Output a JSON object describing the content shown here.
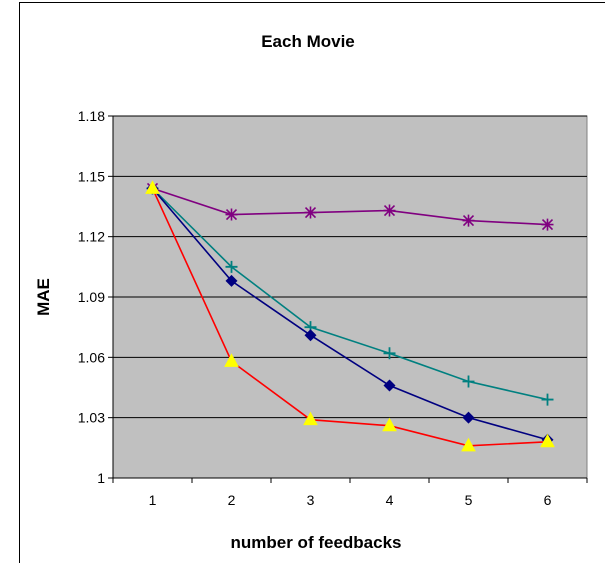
{
  "chart_data": {
    "type": "line",
    "title": "Each Movie",
    "xlabel": "number of feedbacks",
    "ylabel": "MAE",
    "x": [
      1,
      2,
      3,
      4,
      5,
      6
    ],
    "ylim": [
      1,
      1.18
    ],
    "yticks": [
      1,
      1.03,
      1.06,
      1.09,
      1.12,
      1.15,
      1.18
    ],
    "ytick_labels": [
      "1",
      "1.03",
      "1.06",
      "1.09",
      "1.12",
      "1.15",
      "1.18"
    ],
    "xtick_labels": [
      "1",
      "2",
      "3",
      "4",
      "5",
      "6"
    ],
    "grid": "horizontal",
    "plot_background": "#c0c0c0",
    "series": [
      {
        "values": [
          1.144,
          1.131,
          1.132,
          1.133,
          1.128,
          1.126
        ],
        "color": "#800080",
        "marker": "asterisk"
      },
      {
        "values": [
          1.144,
          1.105,
          1.075,
          1.062,
          1.048,
          1.039
        ],
        "color": "#008080",
        "marker": "plus"
      },
      {
        "values": [
          1.144,
          1.098,
          1.071,
          1.046,
          1.03,
          1.019
        ],
        "color": "#000080",
        "marker": "diamond"
      },
      {
        "values": [
          1.144,
          1.058,
          1.029,
          1.026,
          1.016,
          1.018
        ],
        "color": "#ff0000",
        "marker": "triangle",
        "marker_fill": "#ffff00"
      }
    ]
  }
}
